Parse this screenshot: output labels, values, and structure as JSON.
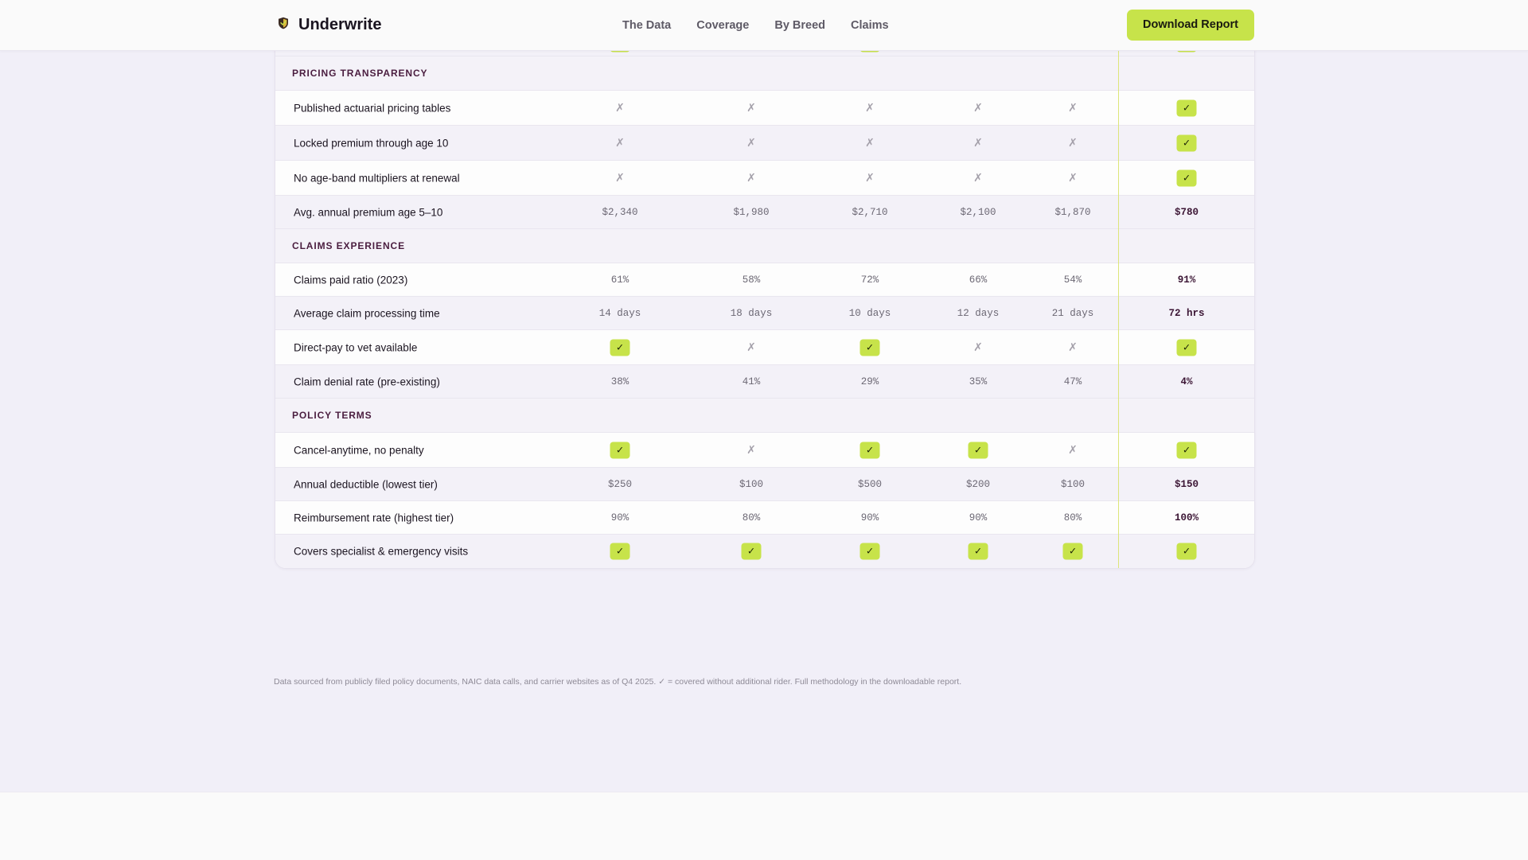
{
  "brand": {
    "name": "Underwrite",
    "logo_icon": "shield-icon"
  },
  "nav": {
    "links": [
      "The Data",
      "Coverage",
      "By Breed",
      "Claims"
    ],
    "cta_label": "Download Report"
  },
  "colors": {
    "accent": "#c7e34a",
    "section_text": "#4a1d3f",
    "highlight_text": "#3b1534"
  },
  "table": {
    "marks": {
      "check": "✓",
      "cross": "✗"
    },
    "rows": [
      {
        "kind": "feature",
        "label": "",
        "cells": [
          "check",
          "",
          "check",
          "",
          "",
          "check"
        ]
      },
      {
        "kind": "section",
        "label": "PRICING TRANSPARENCY"
      },
      {
        "kind": "feature",
        "label": "Published actuarial pricing tables",
        "cells": [
          "cross",
          "cross",
          "cross",
          "cross",
          "cross",
          "check"
        ]
      },
      {
        "kind": "feature",
        "label": "Locked premium through age 10",
        "cells": [
          "cross",
          "cross",
          "cross",
          "cross",
          "cross",
          "check"
        ]
      },
      {
        "kind": "feature",
        "label": "No age-band multipliers at renewal",
        "cells": [
          "cross",
          "cross",
          "cross",
          "cross",
          "cross",
          "check"
        ]
      },
      {
        "kind": "feature",
        "label": "Avg. annual premium age 5–10",
        "cells": [
          "$2,340",
          "$1,980",
          "$2,710",
          "$2,100",
          "$1,870",
          "$780"
        ]
      },
      {
        "kind": "section",
        "label": "CLAIMS EXPERIENCE"
      },
      {
        "kind": "feature",
        "label": "Claims paid ratio (2023)",
        "cells": [
          "61%",
          "58%",
          "72%",
          "66%",
          "54%",
          "91%"
        ]
      },
      {
        "kind": "feature",
        "label": "Average claim processing time",
        "cells": [
          "14 days",
          "18 days",
          "10 days",
          "12 days",
          "21 days",
          "72 hrs"
        ]
      },
      {
        "kind": "feature",
        "label": "Direct-pay to vet available",
        "cells": [
          "check",
          "cross",
          "check",
          "cross",
          "cross",
          "check"
        ]
      },
      {
        "kind": "feature",
        "label": "Claim denial rate (pre-existing)",
        "cells": [
          "38%",
          "41%",
          "29%",
          "35%",
          "47%",
          "4%"
        ]
      },
      {
        "kind": "section",
        "label": "POLICY TERMS"
      },
      {
        "kind": "feature",
        "label": "Cancel-anytime, no penalty",
        "cells": [
          "check",
          "cross",
          "check",
          "check",
          "cross",
          "check"
        ]
      },
      {
        "kind": "feature",
        "label": "Annual deductible (lowest tier)",
        "cells": [
          "$250",
          "$100",
          "$500",
          "$200",
          "$100",
          "$150"
        ]
      },
      {
        "kind": "feature",
        "label": "Reimbursement rate (highest tier)",
        "cells": [
          "90%",
          "80%",
          "90%",
          "90%",
          "80%",
          "100%"
        ]
      },
      {
        "kind": "feature",
        "label": "Covers specialist & emergency visits",
        "cells": [
          "check",
          "check",
          "check",
          "check",
          "check",
          "check"
        ]
      }
    ]
  },
  "footnote": "Data sourced from publicly filed policy documents, NAIC data calls, and carrier websites as of Q4 2025. ✓ = covered without additional rider. Full methodology in the downloadable report."
}
